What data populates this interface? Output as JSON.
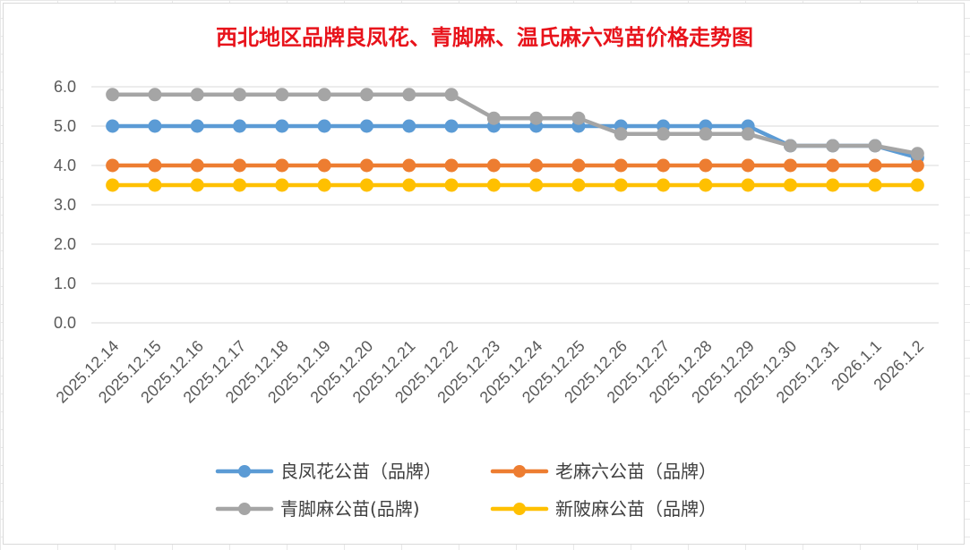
{
  "chart_data": {
    "type": "line",
    "title": "西北地区品牌良凤花、青脚麻、温氏麻六鸡苗价格走势图",
    "xlabel": "",
    "ylabel": "",
    "ylim": [
      0,
      6
    ],
    "ytick_step": 1,
    "ytick_labels": [
      "0.0",
      "1.0",
      "2.0",
      "3.0",
      "4.0",
      "5.0",
      "6.0"
    ],
    "grid": "horizontal",
    "legend_position": "bottom",
    "categories": [
      "2025.12.14",
      "2025.12.15",
      "2025.12.16",
      "2025.12.17",
      "2025.12.18",
      "2025.12.19",
      "2025.12.20",
      "2025.12.21",
      "2025.12.22",
      "2025.12.23",
      "2025.12.24",
      "2025.12.25",
      "2025.12.26",
      "2025.12.27",
      "2025.12.28",
      "2025.12.29",
      "2025.12.30",
      "2025.12.31",
      "2026.1.1",
      "2026.1.2"
    ],
    "series": [
      {
        "name": "良凤花公苗（品牌）",
        "color": "#5b9bd5",
        "values": [
          5.0,
          5.0,
          5.0,
          5.0,
          5.0,
          5.0,
          5.0,
          5.0,
          5.0,
          5.0,
          5.0,
          5.0,
          5.0,
          5.0,
          5.0,
          5.0,
          4.5,
          4.5,
          4.5,
          4.2
        ]
      },
      {
        "name": "老麻六公苗（品牌）",
        "color": "#ed7d31",
        "values": [
          4.0,
          4.0,
          4.0,
          4.0,
          4.0,
          4.0,
          4.0,
          4.0,
          4.0,
          4.0,
          4.0,
          4.0,
          4.0,
          4.0,
          4.0,
          4.0,
          4.0,
          4.0,
          4.0,
          4.0
        ]
      },
      {
        "name": "青脚麻公苗(品牌)",
        "color": "#a5a5a5",
        "values": [
          5.8,
          5.8,
          5.8,
          5.8,
          5.8,
          5.8,
          5.8,
          5.8,
          5.8,
          5.2,
          5.2,
          5.2,
          4.8,
          4.8,
          4.8,
          4.8,
          4.5,
          4.5,
          4.5,
          4.3
        ]
      },
      {
        "name": "新陂麻公苗（品牌）",
        "color": "#ffc000",
        "values": [
          3.5,
          3.5,
          3.5,
          3.5,
          3.5,
          3.5,
          3.5,
          3.5,
          3.5,
          3.5,
          3.5,
          3.5,
          3.5,
          3.5,
          3.5,
          3.5,
          3.5,
          3.5,
          3.5,
          3.5
        ]
      }
    ],
    "draw_order": [
      0,
      1,
      3,
      2
    ],
    "legend_order": [
      0,
      1,
      2,
      3
    ]
  }
}
